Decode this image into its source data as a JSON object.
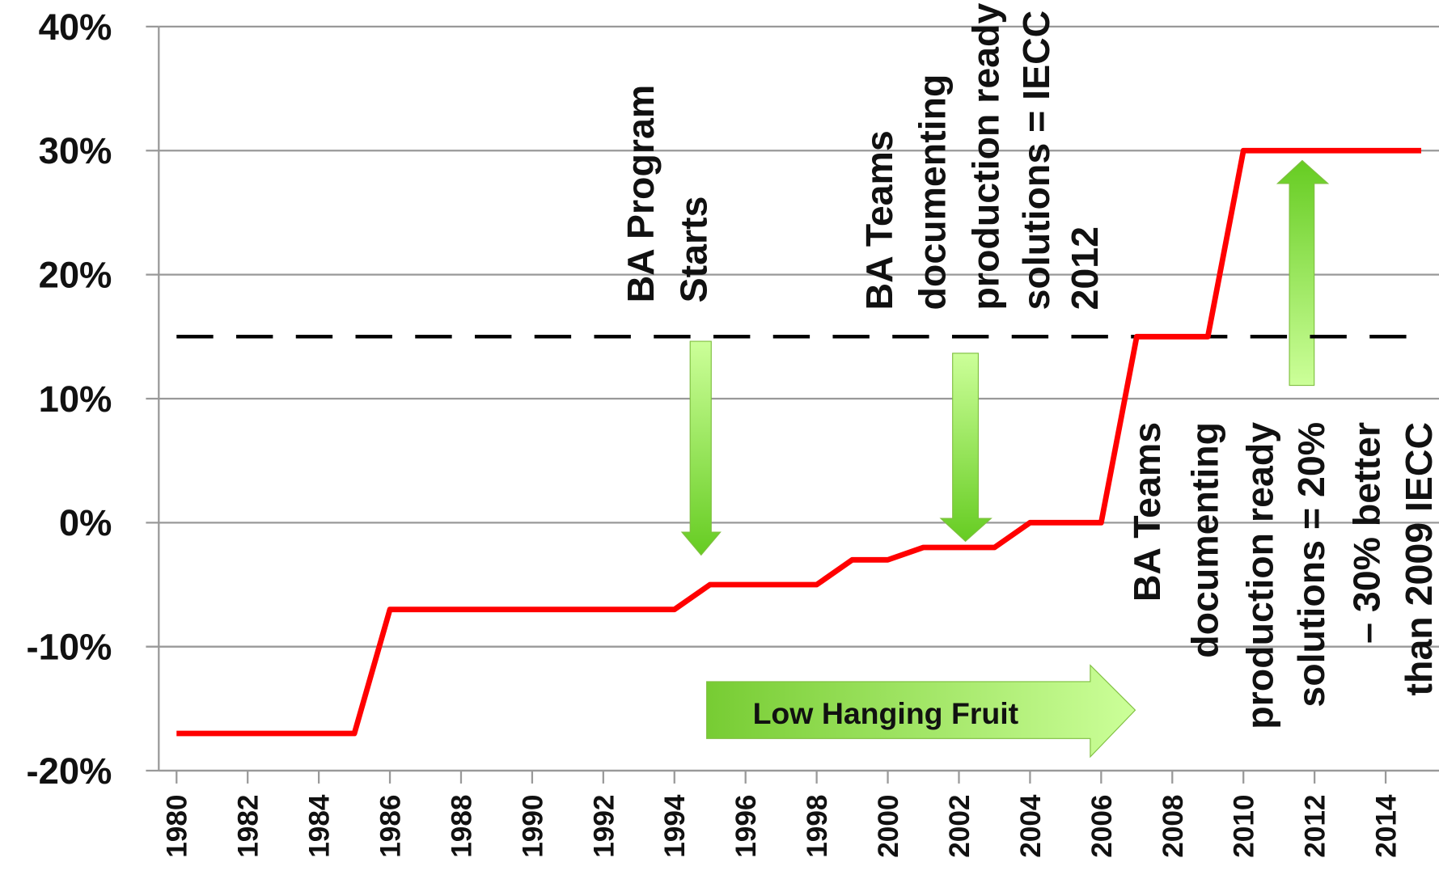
{
  "chart_data": {
    "type": "line",
    "x": [
      1980,
      1981,
      1982,
      1983,
      1984,
      1985,
      1986,
      1987,
      1988,
      1989,
      1990,
      1991,
      1992,
      1993,
      1994,
      1995,
      1996,
      1997,
      1998,
      1999,
      2000,
      2001,
      2002,
      2003,
      2004,
      2005,
      2006,
      2007,
      2008,
      2009,
      2010,
      2011,
      2012,
      2013,
      2014,
      2015
    ],
    "series": [
      {
        "name": null,
        "color": "#ff0000",
        "values": [
          -17,
          -17,
          -17,
          -17,
          -17,
          -17,
          -7,
          -7,
          -7,
          -7,
          -7,
          -7,
          -7,
          -7,
          -7,
          -5,
          -5,
          -5,
          -5,
          -3,
          -3,
          -2,
          -2,
          -2,
          0,
          0,
          0,
          15,
          15,
          15,
          30,
          30,
          30,
          30,
          30,
          30
        ]
      }
    ],
    "reference_line": 15,
    "xlim": [
      1979.5,
      2015.5
    ],
    "xticks": [
      1980,
      1982,
      1984,
      1986,
      1988,
      1990,
      1992,
      1994,
      1996,
      1998,
      2000,
      2002,
      2004,
      2006,
      2008,
      2010,
      2012,
      2014
    ],
    "ylim": [
      -20,
      40
    ],
    "yticks": [
      {
        "value": -20,
        "label": "-20%"
      },
      {
        "value": -10,
        "label": "-10%"
      },
      {
        "value": 0,
        "label": "0%"
      },
      {
        "value": 10,
        "label": "10%"
      },
      {
        "value": 20,
        "label": "20%"
      },
      {
        "value": 30,
        "label": "30%"
      },
      {
        "value": 40,
        "label": "40%"
      }
    ],
    "grid": true,
    "annotations": [
      {
        "lines": [
          "BA Program",
          "Starts"
        ]
      },
      {
        "lines": [
          "BA Teams",
          "documenting",
          "production ready",
          "solutions = IECC",
          "2012"
        ]
      },
      {
        "lines": [
          "BA Teams",
          "documenting",
          "production ready",
          "solutions = 20%",
          "– 30% better",
          "than 2009 IECC"
        ]
      },
      {
        "lines": [
          "Low Hanging Fruit"
        ]
      }
    ]
  }
}
